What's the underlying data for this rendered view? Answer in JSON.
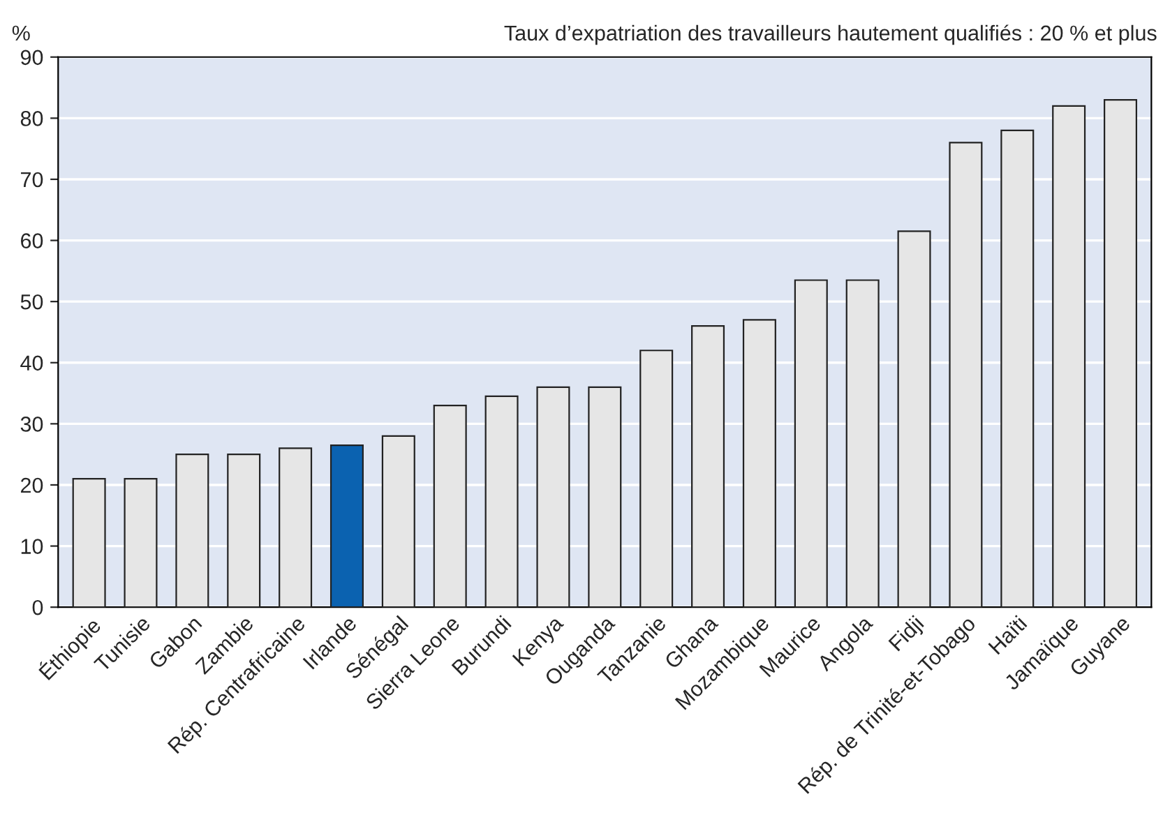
{
  "chart_data": {
    "type": "bar",
    "title": "Taux d’expatriation des travailleurs hautement qualifiés : 20 % et plus",
    "ylabel": "%",
    "categories": [
      "Éthiopie",
      "Tunisie",
      "Gabon",
      "Zambie",
      "Rép. Centrafricaine",
      "Irlande",
      "Sénégal",
      "Sierra Leone",
      "Burundi",
      "Kenya",
      "Ouganda",
      "Tanzanie",
      "Ghana",
      "Mozambique",
      "Maurice",
      "Angola",
      "Fidji",
      "Rép. de Trinité-et-Tobago",
      "Haïti",
      "Jamaïque",
      "Guyane"
    ],
    "values": [
      21,
      21,
      25,
      25,
      26,
      26.5,
      28,
      33,
      34.5,
      36,
      36,
      42,
      46,
      47,
      53.5,
      53.5,
      61.5,
      76,
      78,
      82,
      83
    ],
    "colors": [
      "#e6e6e6",
      "#e6e6e6",
      "#e6e6e6",
      "#e6e6e6",
      "#e6e6e6",
      "#0b62b0",
      "#e6e6e6",
      "#e6e6e6",
      "#e6e6e6",
      "#e6e6e6",
      "#e6e6e6",
      "#e6e6e6",
      "#e6e6e6",
      "#e6e6e6",
      "#e6e6e6",
      "#e6e6e6",
      "#e6e6e6",
      "#e6e6e6",
      "#e6e6e6",
      "#e6e6e6",
      "#e6e6e6"
    ],
    "ylim": [
      0,
      90
    ],
    "yticks": [
      0,
      10,
      20,
      30,
      40,
      50,
      60,
      70,
      80,
      90
    ],
    "grid": "y"
  }
}
